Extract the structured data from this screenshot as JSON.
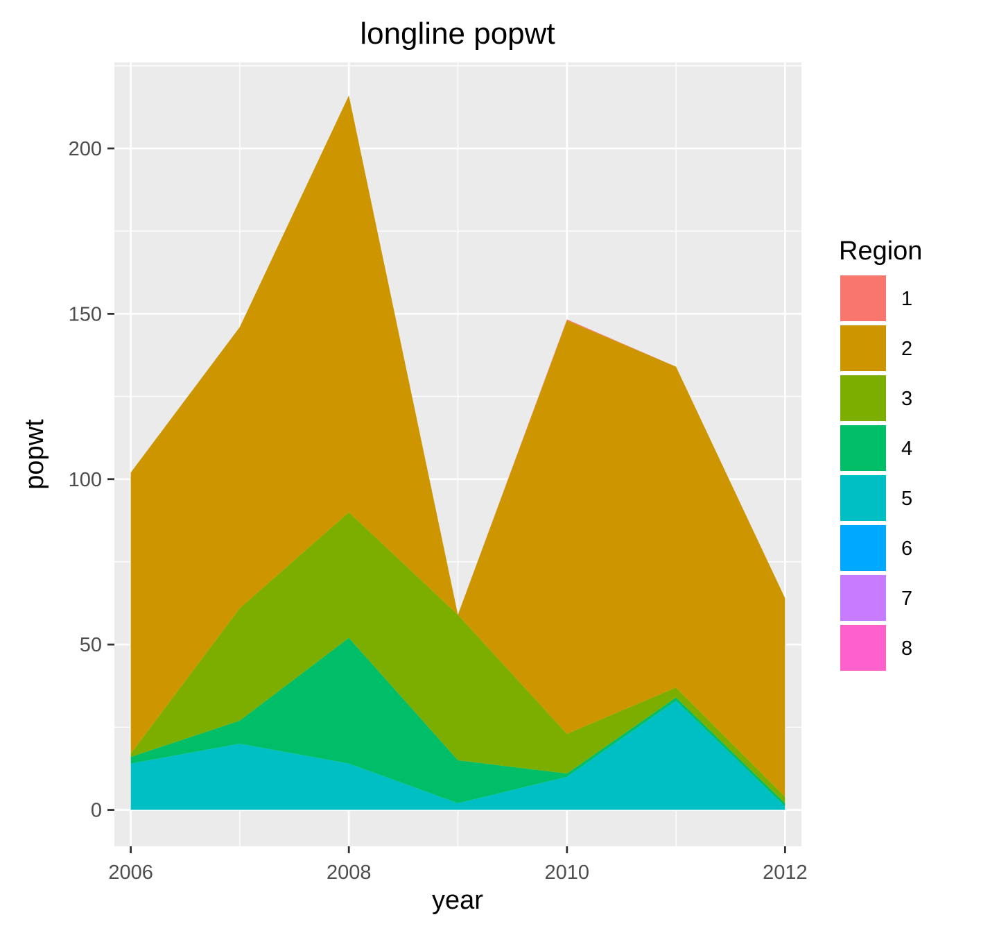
{
  "chart_data": {
    "type": "area",
    "stacked": true,
    "title": "longline popwt",
    "xlabel": "year",
    "ylabel": "popwt",
    "x": [
      2006,
      2007,
      2008,
      2009,
      2010,
      2011,
      2012
    ],
    "xlim": [
      2005.85,
      2012.15
    ],
    "ylim": [
      -11,
      226
    ],
    "x_ticks": [
      2006,
      2008,
      2010,
      2012
    ],
    "x_tick_labels": [
      "2006",
      "2008",
      "2010",
      "2012"
    ],
    "y_ticks": [
      0,
      50,
      100,
      150,
      200
    ],
    "y_tick_labels": [
      "0",
      "50",
      "100",
      "150",
      "200"
    ],
    "grid": true,
    "legend": {
      "title": "Region",
      "position": "right"
    },
    "series": [
      {
        "name": "1",
        "color": "#F8766D",
        "values": [
          0,
          0,
          0,
          0,
          0.3,
          0,
          0
        ]
      },
      {
        "name": "2",
        "color": "#CD9600",
        "values": [
          85,
          85,
          126,
          0,
          125,
          97,
          60
        ]
      },
      {
        "name": "3",
        "color": "#7CAE00",
        "values": [
          1,
          34,
          38,
          44,
          12,
          3,
          2
        ]
      },
      {
        "name": "4",
        "color": "#00BE67",
        "values": [
          2,
          7,
          38,
          13,
          1,
          1,
          1
        ]
      },
      {
        "name": "5",
        "color": "#00BFC4",
        "values": [
          14,
          20,
          14,
          2,
          10,
          33,
          1
        ]
      },
      {
        "name": "6",
        "color": "#00A9FF",
        "values": [
          0,
          0,
          0,
          0,
          0,
          0,
          0
        ]
      },
      {
        "name": "7",
        "color": "#C77CFF",
        "values": [
          0,
          0,
          0,
          0,
          0,
          0,
          0
        ]
      },
      {
        "name": "8",
        "color": "#FF61CC",
        "values": [
          0,
          0,
          0,
          0,
          0,
          0,
          0
        ]
      }
    ]
  }
}
